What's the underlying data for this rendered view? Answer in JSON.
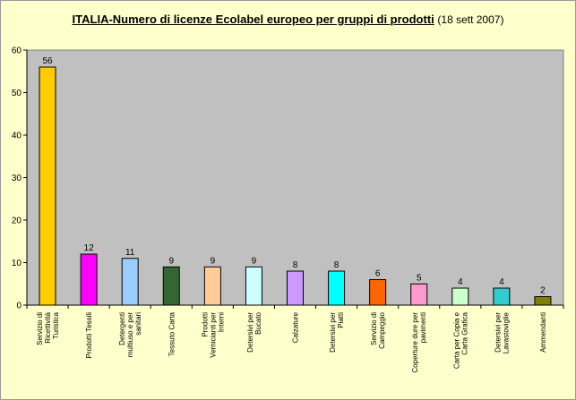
{
  "chart_data": {
    "type": "bar",
    "title": "ITALIA-Numero di licenze Ecolabel europeo per gruppi di prodotti",
    "subtitle": "(18 sett 2007)",
    "xlabel": "",
    "ylabel": "",
    "ylim": [
      0,
      60
    ],
    "yticks": [
      "0",
      "10",
      "20",
      "30",
      "40",
      "50",
      "60"
    ],
    "grid": false,
    "legend": "none",
    "categories": [
      "Servizio di Ricettività Turistica",
      "Prodotti Tessili",
      "Detergenti multiuso e per sanitari",
      "Tessuto Carta",
      "Prodotti Vernicianti per Interni",
      "Detersivi per Bucato",
      "Calzature",
      "Detersivi per Piatti",
      "Servizio di Campeggio",
      "Coperture dure per pavimenti",
      "Carta per Copia e Carta Grafica",
      "Detersivi per Lavastoviglie",
      "Ammendanti"
    ],
    "values": [
      56,
      12,
      11,
      9,
      9,
      9,
      8,
      8,
      6,
      5,
      4,
      4,
      2
    ],
    "colors": [
      "#ffcc00",
      "#ff00ff",
      "#99ccff",
      "#336633",
      "#ffcc99",
      "#ccffff",
      "#cc99ff",
      "#00ffff",
      "#ff6600",
      "#ff99cc",
      "#ccffcc",
      "#33cccc",
      "#808000"
    ],
    "plot_background": "#c0c0c0"
  }
}
